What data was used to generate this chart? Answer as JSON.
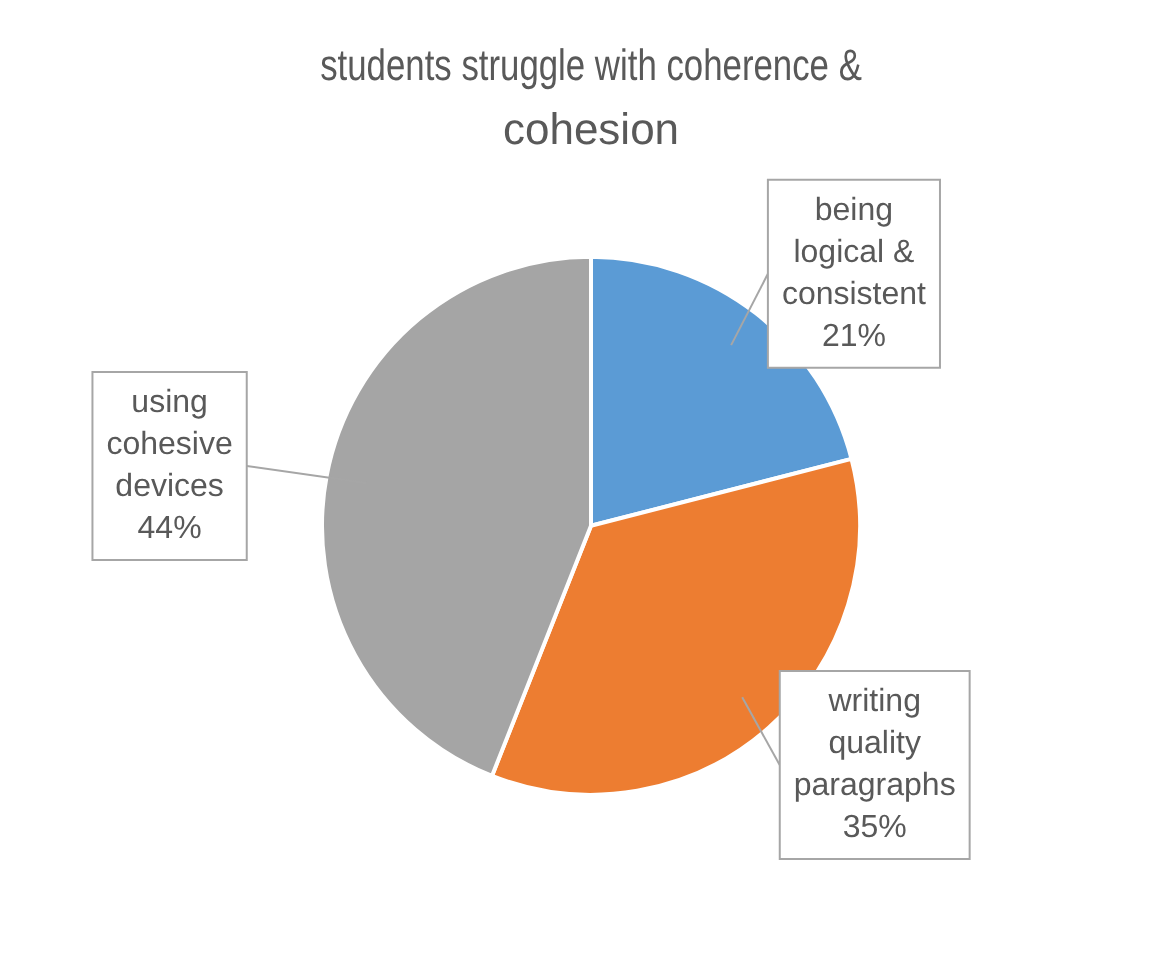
{
  "chart_data": {
    "type": "pie",
    "title": "students struggle with coherence & cohesion",
    "categories": [
      "being logical & consistent",
      "writing quality paragraphs",
      "using cohesive devices"
    ],
    "values": [
      21,
      35,
      44
    ],
    "colors": [
      "#5b9bd5",
      "#ed7d31",
      "#a5a5a5"
    ],
    "value_labels": [
      "21%",
      "35%",
      "44%"
    ],
    "legend": false
  }
}
